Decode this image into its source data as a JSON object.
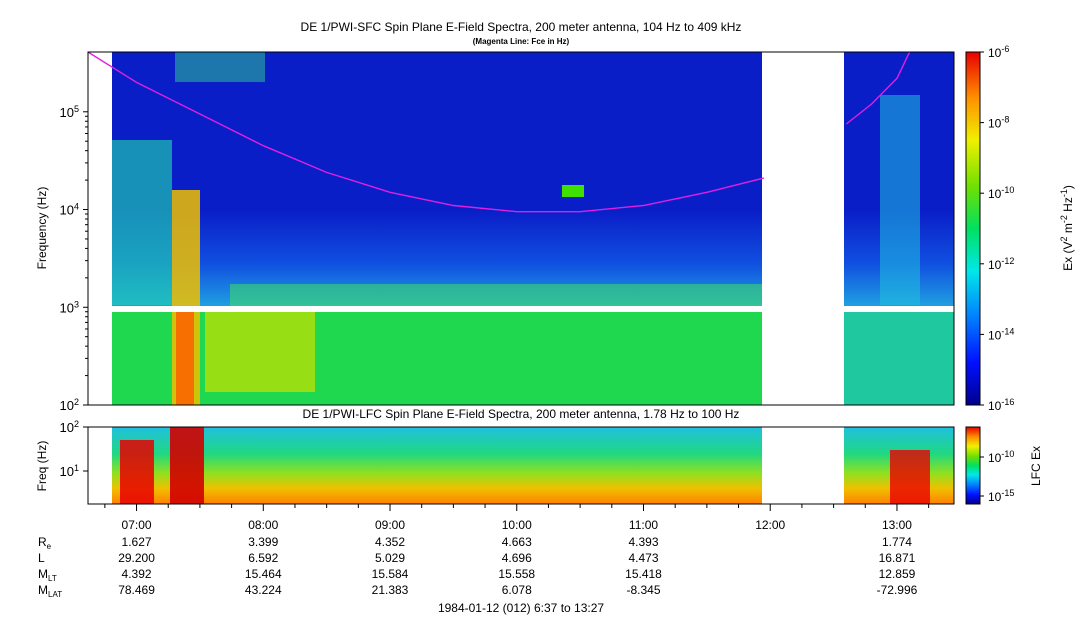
{
  "chart_data": [
    {
      "type": "heatmap",
      "title": "DE 1/PWI-SFC  Spin Plane E-Field Spectra, 200 meter antenna, 104 Hz to 409 kHz",
      "subtitle": "(Magenta Line: Fce in Hz)",
      "ylabel": "Frequency (Hz)",
      "yscale": "log",
      "ylim": [
        100,
        409000
      ],
      "yticks": [
        {
          "v": 100,
          "b": "10",
          "e": "2"
        },
        {
          "v": 1000,
          "b": "10",
          "e": "3"
        },
        {
          "v": 10000,
          "b": "10",
          "e": "4"
        },
        {
          "v": 100000,
          "b": "10",
          "e": "5"
        }
      ],
      "xlim_hours": [
        6.617,
        13.45
      ],
      "data_gap_hours": [
        11.95,
        12.6
      ],
      "colorbar": {
        "label": "Ex (V² m⁻² Hz⁻¹)",
        "label_parts": [
          "Ex (V",
          "2",
          " m",
          "-2",
          " Hz",
          "-1",
          ")"
        ],
        "scale": "log",
        "range": [
          1e-16,
          1e-06
        ],
        "ticks": [
          {
            "v": -6,
            "b": "10",
            "e": "-6"
          },
          {
            "v": -8,
            "b": "10",
            "e": "-8"
          },
          {
            "v": -10,
            "b": "10",
            "e": "-10"
          },
          {
            "v": -12,
            "b": "10",
            "e": "-12"
          },
          {
            "v": -14,
            "b": "10",
            "e": "-14"
          },
          {
            "v": -16,
            "b": "10",
            "e": "-16"
          }
        ]
      },
      "fce_line": {
        "name": "Fce",
        "color": "#e020e0",
        "t_hours": [
          6.617,
          7.0,
          7.5,
          8.0,
          8.5,
          9.0,
          9.5,
          10.0,
          10.5,
          11.0,
          11.5,
          11.95,
          12.6,
          12.8,
          13.0,
          13.1
        ],
        "f_hz": [
          409000,
          200000,
          95000,
          45000,
          24000,
          15000,
          11000,
          9500,
          9500,
          11000,
          15000,
          21000,
          75000,
          120000,
          220000,
          409000
        ]
      }
    },
    {
      "type": "heatmap",
      "title": "DE 1/PWI-LFC  Spin Plane E-Field Spectra, 200 meter antenna, 1.78 Hz to 100 Hz",
      "ylabel": "Freq (Hz)",
      "yscale": "log",
      "ylim": [
        1.78,
        100
      ],
      "yticks": [
        {
          "v": 10,
          "b": "10",
          "e": "1"
        },
        {
          "v": 100,
          "b": "10",
          "e": "2"
        }
      ],
      "colorbar": {
        "label": "LFC Ex",
        "scale": "log",
        "ticks": [
          {
            "v": -10,
            "b": "10",
            "e": "-10"
          },
          {
            "v": -15,
            "b": "10",
            "e": "-15"
          }
        ]
      },
      "xlim_hours": [
        6.617,
        13.45
      ],
      "data_gap_hours": [
        11.95,
        12.6
      ]
    }
  ],
  "time_axis": {
    "ticks": [
      {
        "h": 7,
        "label": "07:00"
      },
      {
        "h": 8,
        "label": "08:00"
      },
      {
        "h": 9,
        "label": "09:00"
      },
      {
        "h": 10,
        "label": "10:00"
      },
      {
        "h": 11,
        "label": "11:00"
      },
      {
        "h": 12,
        "label": "12:00"
      },
      {
        "h": 13,
        "label": "13:00"
      }
    ],
    "footer": "1984-01-12 (012) 6:37 to 13:27"
  },
  "ephemeris": {
    "rows": [
      {
        "name": "R",
        "sub": "e",
        "values": [
          "1.627",
          "3.399",
          "4.352",
          "4.663",
          "4.393",
          "",
          "1.774"
        ]
      },
      {
        "name": "L",
        "sub": "",
        "values": [
          "29.200",
          "6.592",
          "5.029",
          "4.696",
          "4.473",
          "",
          "16.871"
        ]
      },
      {
        "name": "M",
        "sub": "LT",
        "values": [
          "4.392",
          "15.464",
          "15.584",
          "15.558",
          "15.418",
          "",
          "12.859"
        ]
      },
      {
        "name": "M",
        "sub": "LAT",
        "values": [
          "78.469",
          "43.224",
          "21.383",
          "6.078",
          "-8.345",
          "",
          "-72.996"
        ]
      }
    ]
  }
}
